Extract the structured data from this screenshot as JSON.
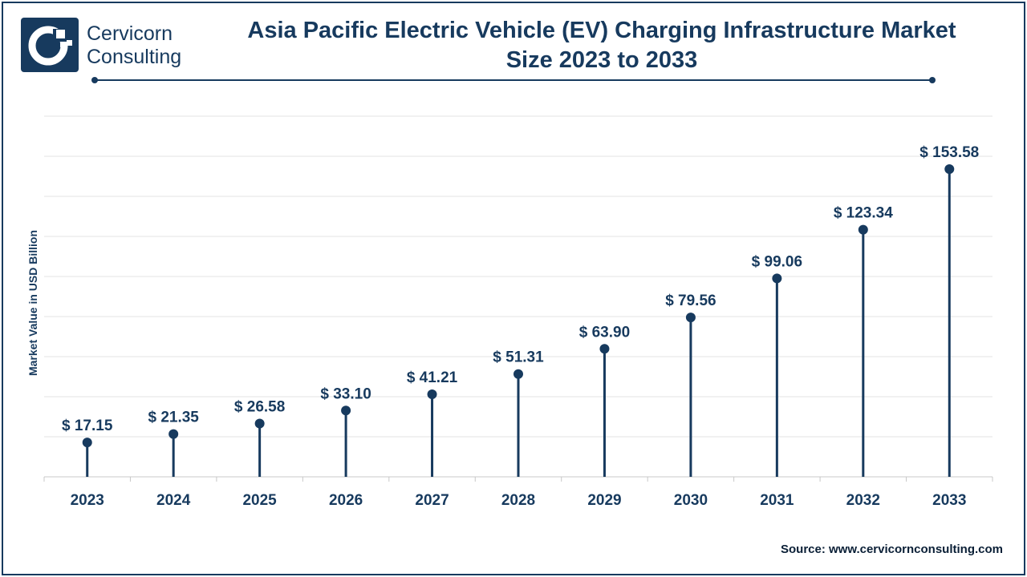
{
  "header": {
    "brand_line1": "Cervicorn",
    "brand_line2": "Consulting",
    "logo_icon": "cervicorn-logo-icon"
  },
  "colors": {
    "primary": "#173a5e",
    "grid": "#e3e3e3",
    "axis": "#c8c8c8",
    "text": "#173a5e"
  },
  "chart_data": {
    "type": "lollipop",
    "title_line1": "Asia Pacific Electric Vehicle (EV) Charging Infrastructure Market",
    "title_line2": "Size 2023 to 2033",
    "ylabel": "Market Value in USD Billion",
    "xlabel": "",
    "categories": [
      "2023",
      "2024",
      "2025",
      "2026",
      "2027",
      "2028",
      "2029",
      "2030",
      "2031",
      "2032",
      "2033"
    ],
    "values": [
      17.15,
      21.35,
      26.58,
      33.1,
      41.21,
      51.31,
      63.9,
      79.56,
      99.06,
      123.34,
      153.58
    ],
    "value_labels": [
      "$ 17.15",
      "$ 21.35",
      "$ 26.58",
      "$ 33.10",
      "$ 41.21",
      "$ 51.31",
      "$ 63.90",
      "$ 79.56",
      "$ 99.06",
      "$ 123.34",
      "$ 153.58"
    ],
    "ylim": [
      0,
      180
    ],
    "grid": true,
    "legend": "none"
  },
  "footer": {
    "source": "Source: www.cervicornconsulting.com"
  }
}
